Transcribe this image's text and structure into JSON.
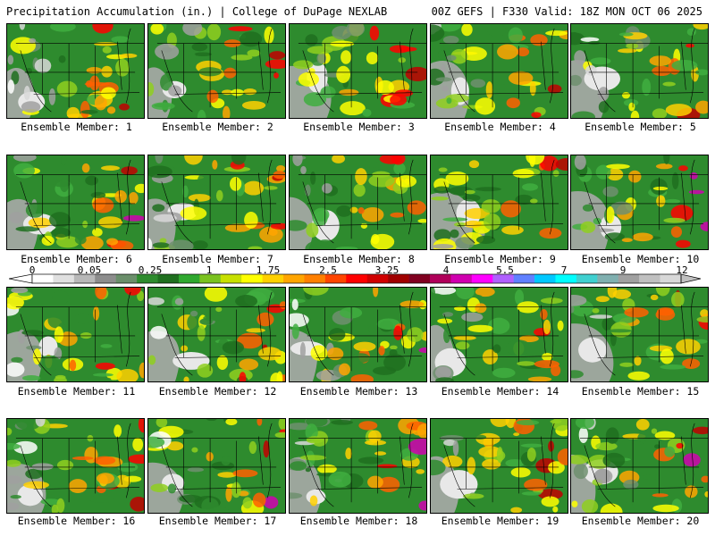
{
  "header": {
    "left_title": "Precipitation Accumulation (in.) | College of DuPage NEXLAB",
    "right_title": "00Z GEFS | F330 Valid: 18Z MON OCT 06 2025"
  },
  "colorbar": {
    "tick_labels": [
      "0",
      "0.05",
      "0.25",
      "1",
      "1.75",
      "2.5",
      "3.25",
      "4",
      "5.5",
      "7",
      "9",
      "12"
    ],
    "colors": [
      "#ffffff",
      "#e0e0e0",
      "#b8b8b8",
      "#8c8c8c",
      "#6a8e6a",
      "#2e8b2e",
      "#1f6f1f",
      "#2fa82f",
      "#7ac21f",
      "#c8e000",
      "#ffff00",
      "#ffd000",
      "#ffa500",
      "#ff7f00",
      "#ff4500",
      "#ff0000",
      "#d00000",
      "#a00000",
      "#800020",
      "#b0005a",
      "#d000b0",
      "#ff00ff",
      "#b060ff",
      "#6080ff",
      "#00c8ff",
      "#00ffff",
      "#40d0d0",
      "#80b0b0",
      "#a0a0a0",
      "#c0c0c0",
      "#d8d8d8"
    ]
  },
  "panels": [
    {
      "label": "Ensemble Member: 1"
    },
    {
      "label": "Ensemble Member: 2"
    },
    {
      "label": "Ensemble Member: 3"
    },
    {
      "label": "Ensemble Member: 4"
    },
    {
      "label": "Ensemble Member: 5"
    },
    {
      "label": "Ensemble Member: 6"
    },
    {
      "label": "Ensemble Member: 7"
    },
    {
      "label": "Ensemble Member: 8"
    },
    {
      "label": "Ensemble Member: 9"
    },
    {
      "label": "Ensemble Member: 10"
    },
    {
      "label": "Ensemble Member: 11"
    },
    {
      "label": "Ensemble Member: 12"
    },
    {
      "label": "Ensemble Member: 13"
    },
    {
      "label": "Ensemble Member: 14"
    },
    {
      "label": "Ensemble Member: 15"
    },
    {
      "label": "Ensemble Member: 16"
    },
    {
      "label": "Ensemble Member: 17"
    },
    {
      "label": "Ensemble Member: 18"
    },
    {
      "label": "Ensemble Member: 19"
    },
    {
      "label": "Ensemble Member: 20"
    }
  ]
}
